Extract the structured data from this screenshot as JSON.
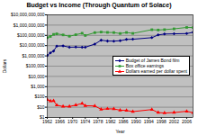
{
  "chart_data": {
    "type": "line",
    "title": "Budget vs Income (Through Quantum of Solace)",
    "x_label": "Year",
    "y_label": "Dollars",
    "x": [
      1962,
      1963,
      1964,
      1965,
      1967,
      1969,
      1971,
      1973,
      1974,
      1977,
      1979,
      1981,
      1983,
      1985,
      1987,
      1989,
      1995,
      1997,
      1999,
      2002,
      2006,
      2008
    ],
    "series": [
      {
        "name": "Budget of James Bond film",
        "color": "#000080",
        "marker": "diamond",
        "values": [
          1100000,
          2000000,
          3000000,
          9000000,
          9500000,
          7000000,
          7200000,
          7000000,
          7000000,
          14000000,
          34000000,
          28000000,
          27500000,
          30000000,
          40000000,
          42000000,
          60000000,
          110000000,
          135000000,
          142000000,
          150000000,
          200000000
        ]
      },
      {
        "name": "Box office earnings",
        "color": "#339933",
        "marker": "square",
        "values": [
          59500000,
          78900000,
          124900000,
          141200000,
          111600000,
          82000000,
          116000000,
          161800000,
          97600000,
          185400000,
          210300000,
          195300000,
          187500000,
          152400000,
          191200000,
          156200000,
          356400000,
          333000000,
          361800000,
          431900000,
          594200000,
          586100000
        ]
      },
      {
        "name": "Dollars earned per dollar spent",
        "color": "#ff0000",
        "marker": "triangle",
        "values": [
          54.1,
          39.5,
          41.6,
          15.7,
          11.7,
          11.7,
          16.1,
          23.1,
          13.9,
          13.2,
          6.2,
          7.0,
          6.8,
          5.1,
          4.8,
          3.7,
          5.9,
          3.0,
          2.7,
          3.0,
          4.0,
          2.9
        ]
      }
    ],
    "xlim": [
      1962,
      2008
    ],
    "xticks": [
      1962,
      1966,
      1970,
      1974,
      1978,
      1982,
      1986,
      1990,
      1994,
      1998,
      2002,
      2006
    ],
    "ylim": [
      1,
      10000000000
    ],
    "yticks": [
      {
        "value": 1,
        "label": "$1"
      },
      {
        "value": 10,
        "label": "$10"
      },
      {
        "value": 100,
        "label": "$100"
      },
      {
        "value": 1000,
        "label": "$1,000"
      },
      {
        "value": 10000,
        "label": "$10,000"
      },
      {
        "value": 100000,
        "label": "$100,000"
      },
      {
        "value": 1000000,
        "label": "$1,000,000"
      },
      {
        "value": 10000000,
        "label": "$10,000,000"
      },
      {
        "value": 100000000,
        "label": "$100,000,000"
      },
      {
        "value": 1000000000,
        "label": "$1,000,000,000"
      },
      {
        "value": 10000000000,
        "label": "$10,000,000,000"
      }
    ],
    "log": "y",
    "grid": true,
    "legend": "right"
  }
}
